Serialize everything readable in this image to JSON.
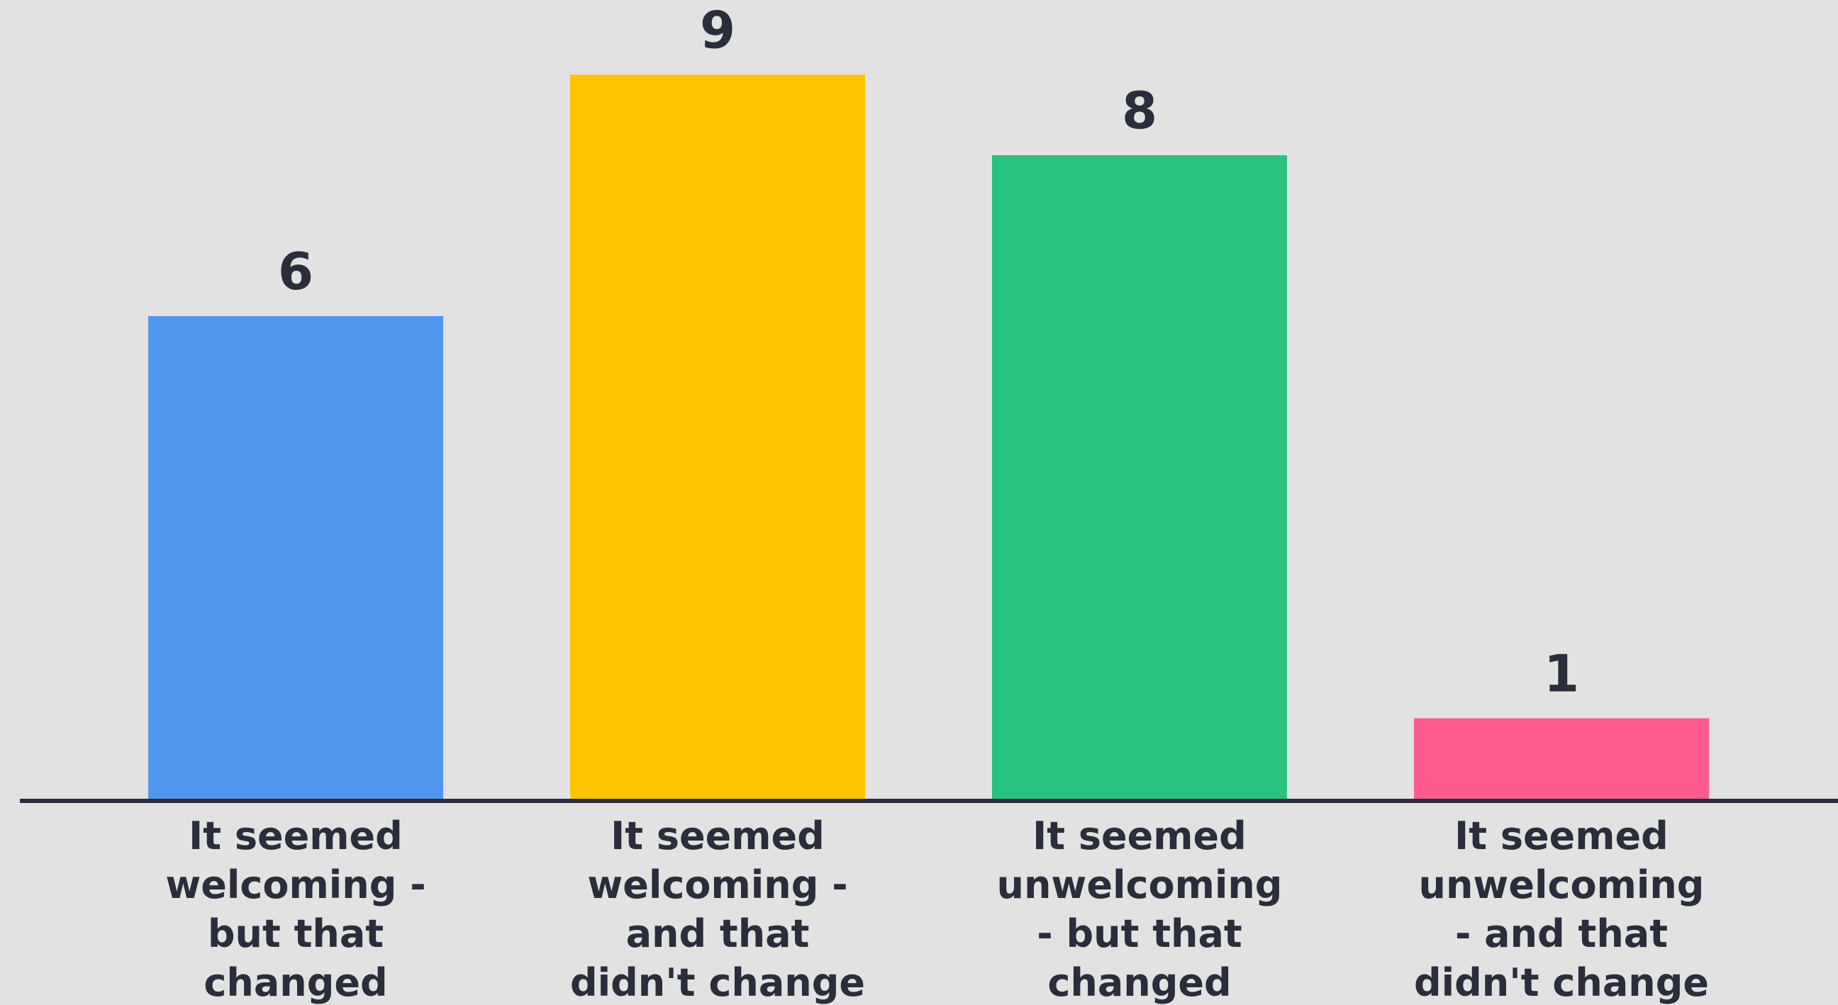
{
  "chart_data": {
    "type": "bar",
    "title": "",
    "xlabel": "",
    "ylabel": "",
    "ylim": [
      0,
      9
    ],
    "grid": false,
    "legend": "none",
    "categories": [
      [
        "It seemed",
        "welcoming -",
        "but that",
        "changed"
      ],
      [
        "It seemed",
        "welcoming -",
        "and that",
        "didn't change"
      ],
      [
        "It seemed",
        "unwelcoming",
        "- but that",
        "changed"
      ],
      [
        "It seemed",
        "unwelcoming",
        "- and that",
        "didn't change"
      ]
    ],
    "values": [
      6,
      9,
      8,
      1
    ],
    "colors": [
      "#4f97ee",
      "#fec400",
      "#28c27e",
      "#fe5b8f"
    ]
  }
}
